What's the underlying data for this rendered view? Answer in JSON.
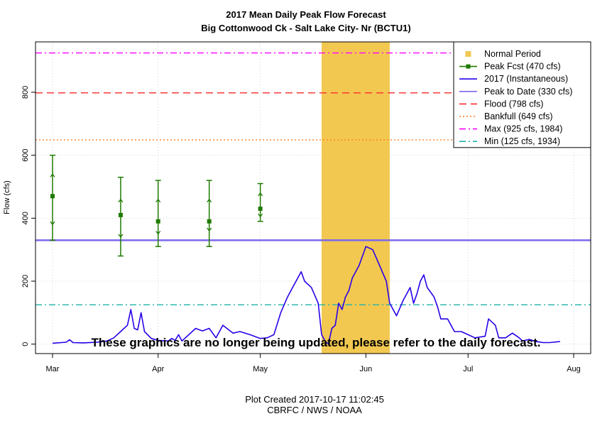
{
  "chart_data": {
    "type": "line",
    "title": "2017 Mean Daily Peak Flow Forecast",
    "subtitle": "Big Cottonwood Ck - Salt Lake City- Nr (BCTU1)",
    "ylabel": "Flow (cfs)",
    "xlabel": "",
    "ylim": [
      -30,
      960
    ],
    "xlim": [
      "2017-02-24",
      "2017-08-06"
    ],
    "y_ticks": [
      0,
      200,
      400,
      600,
      800
    ],
    "x_ticks": [
      {
        "date": "2017-03-01",
        "label": "Mar"
      },
      {
        "date": "2017-04-01",
        "label": "Apr"
      },
      {
        "date": "2017-05-01",
        "label": "May"
      },
      {
        "date": "2017-06-01",
        "label": "Jun"
      },
      {
        "date": "2017-07-01",
        "label": "Jul"
      },
      {
        "date": "2017-08-01",
        "label": "Aug"
      }
    ],
    "grid": true,
    "legend_position": "top-right",
    "normal_period": {
      "start": "2017-05-19",
      "end": "2017-06-08",
      "color": "#f2c851"
    },
    "reference_lines": [
      {
        "name": "Peak to Date (330 cfs)",
        "value": 330,
        "color": "#7b68ee",
        "style": "solid"
      },
      {
        "name": "Flood (798 cfs)",
        "value": 798,
        "color": "#ff2a2a",
        "style": "dashed"
      },
      {
        "name": "Bankfull (649 cfs)",
        "value": 649,
        "color": "#ff7f24",
        "style": "dotted"
      },
      {
        "name": "Max (925 cfs, 1984)",
        "value": 925,
        "color": "#ff00ff",
        "style": "dashdot"
      },
      {
        "name": "Min (125 cfs, 1934)",
        "value": 125,
        "color": "#20b2aa",
        "style": "dashdot"
      }
    ],
    "forecasts": [
      {
        "date": "2017-03-01",
        "value": 470,
        "low": 330,
        "high": 600,
        "q_low": 380,
        "q_high": 540
      },
      {
        "date": "2017-03-21",
        "value": 410,
        "low": 280,
        "high": 530,
        "q_low": 340,
        "q_high": 460
      },
      {
        "date": "2017-04-01",
        "value": 390,
        "low": 310,
        "high": 520,
        "q_low": 350,
        "q_high": 460
      },
      {
        "date": "2017-04-16",
        "value": 390,
        "low": 310,
        "high": 520,
        "q_low": 360,
        "q_high": 460
      },
      {
        "date": "2017-05-01",
        "value": 430,
        "low": 390,
        "high": 510,
        "q_low": 405,
        "q_high": 480
      }
    ],
    "series": [
      {
        "name": "2017  (Instantaneous)",
        "color": "#2a00e8",
        "x": [
          "2017-03-01",
          "2017-03-05",
          "2017-03-06",
          "2017-03-07",
          "2017-03-10",
          "2017-03-14",
          "2017-03-17",
          "2017-03-19",
          "2017-03-21",
          "2017-03-23",
          "2017-03-24",
          "2017-03-25",
          "2017-03-26",
          "2017-03-27",
          "2017-03-28",
          "2017-03-30",
          "2017-04-01",
          "2017-04-04",
          "2017-04-05",
          "2017-04-06",
          "2017-04-07",
          "2017-04-08",
          "2017-04-12",
          "2017-04-14",
          "2017-04-16",
          "2017-04-18",
          "2017-04-20",
          "2017-04-23",
          "2017-04-25",
          "2017-04-28",
          "2017-05-01",
          "2017-05-03",
          "2017-05-05",
          "2017-05-07",
          "2017-05-09",
          "2017-05-11",
          "2017-05-13",
          "2017-05-14",
          "2017-05-16",
          "2017-05-18",
          "2017-05-19",
          "2017-05-20",
          "2017-05-21",
          "2017-05-22",
          "2017-05-23",
          "2017-05-24",
          "2017-05-25",
          "2017-05-26",
          "2017-05-27",
          "2017-05-28",
          "2017-05-30",
          "2017-06-01",
          "2017-06-03",
          "2017-06-05",
          "2017-06-07",
          "2017-06-08",
          "2017-06-10",
          "2017-06-12",
          "2017-06-14",
          "2017-06-15",
          "2017-06-16",
          "2017-06-17",
          "2017-06-18",
          "2017-06-19",
          "2017-06-21",
          "2017-06-22",
          "2017-06-23",
          "2017-06-25",
          "2017-06-27",
          "2017-06-29",
          "2017-07-01",
          "2017-07-03",
          "2017-07-06",
          "2017-07-07",
          "2017-07-09",
          "2017-07-10",
          "2017-07-12",
          "2017-07-14",
          "2017-07-16",
          "2017-07-17",
          "2017-07-19",
          "2017-07-21",
          "2017-07-23",
          "2017-07-25",
          "2017-07-28"
        ],
        "values": [
          3,
          6,
          14,
          5,
          4,
          6,
          10,
          20,
          40,
          60,
          110,
          50,
          45,
          100,
          40,
          18,
          12,
          10,
          18,
          12,
          30,
          10,
          50,
          42,
          50,
          20,
          60,
          35,
          40,
          30,
          18,
          20,
          30,
          100,
          150,
          190,
          230,
          200,
          180,
          130,
          30,
          10,
          0,
          50,
          60,
          130,
          110,
          150,
          170,
          210,
          250,
          310,
          300,
          250,
          200,
          130,
          90,
          140,
          180,
          130,
          160,
          200,
          220,
          180,
          150,
          120,
          80,
          80,
          40,
          40,
          30,
          20,
          25,
          80,
          60,
          20,
          20,
          35,
          20,
          10,
          15,
          8,
          5,
          5,
          8
        ]
      }
    ],
    "legend": [
      {
        "label": "Normal Period",
        "kind": "square",
        "color": "#f2c851"
      },
      {
        "label": "Peak Fcst (470 cfs)",
        "kind": "line-square",
        "color": "#1f7a00"
      },
      {
        "label": "2017  (Instantaneous)",
        "kind": "line",
        "color": "#2a00e8"
      },
      {
        "label": "Peak to Date (330 cfs)",
        "kind": "line",
        "color": "#7b68ee"
      },
      {
        "label": "Flood (798 cfs)",
        "kind": "dashed",
        "color": "#ff2a2a"
      },
      {
        "label": "Bankfull (649 cfs)",
        "kind": "dotted",
        "color": "#ff7f24"
      },
      {
        "label": "Max (925 cfs, 1984)",
        "kind": "dashdot",
        "color": "#ff00ff"
      },
      {
        "label": "Min (125 cfs, 1934)",
        "kind": "dashdot",
        "color": "#20b2aa"
      }
    ],
    "annotation": "These graphics are no longer being updated, please refer to the daily forecast.",
    "footer_lines": [
      "Plot Created 2017-10-17 11:02:45",
      "CBRFC / NWS / NOAA"
    ],
    "forecast_color": "#1f7a00"
  }
}
